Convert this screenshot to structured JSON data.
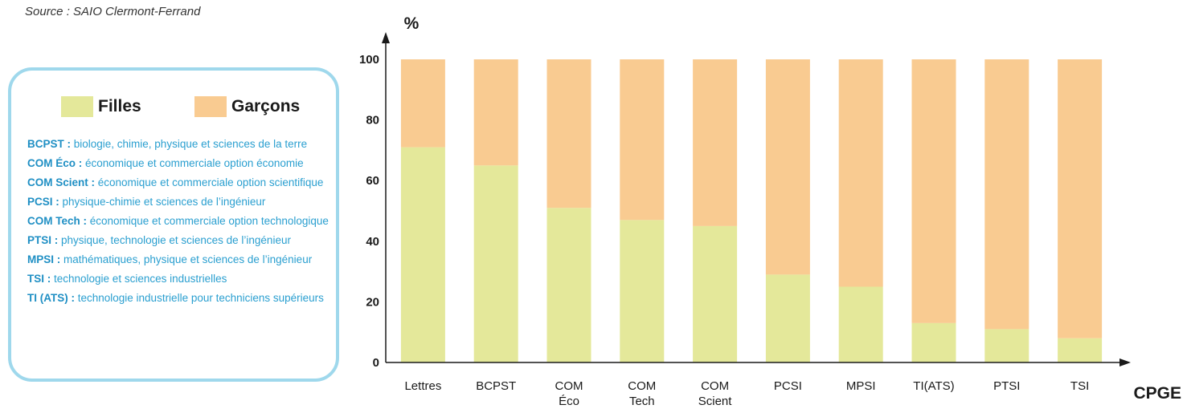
{
  "source": "Source : SAIO Clermont-Ferrand",
  "legend": {
    "filles": "Filles",
    "garcons": "Garçons"
  },
  "colors": {
    "filles": "#e4e89a",
    "garcons": "#f9cb91",
    "legend_border": "#9fd8ec",
    "defs_text": "#2a9fd0"
  },
  "definitions": [
    {
      "term": "BCPST :",
      "text": " biologie, chimie, physique et sciences de la terre"
    },
    {
      "term": "COM Éco :",
      "text": " économique et commerciale option économie"
    },
    {
      "term": "COM Scient :",
      "text": " économique et commerciale option scientifique"
    },
    {
      "term": "PCSI :",
      "text": " physique-chimie et sciences de l’ingénieur"
    },
    {
      "term": "COM Tech :",
      "text": " économique et commerciale option technologique"
    },
    {
      "term": "PTSI :",
      "text": " physique, technologie et sciences de l’ingénieur"
    },
    {
      "term": "MPSI :",
      "text": " mathématiques, physique et sciences de l’ingénieur"
    },
    {
      "term": "TSI :",
      "text": " technologie et sciences industrielles"
    },
    {
      "term": "TI (ATS) :",
      "text": " technologie industrielle pour techniciens supérieurs"
    }
  ],
  "chart_data": {
    "type": "bar",
    "stacked": true,
    "categories": [
      [
        "Lettres"
      ],
      [
        "BCPST"
      ],
      [
        "COM",
        "Éco"
      ],
      [
        "COM",
        "Tech"
      ],
      [
        "COM",
        "Scient"
      ],
      [
        "PCSI"
      ],
      [
        "MPSI"
      ],
      [
        "TI(ATS)"
      ],
      [
        "PTSI"
      ],
      [
        "TSI"
      ]
    ],
    "series": [
      {
        "name": "Filles",
        "values": [
          71,
          65,
          51,
          47,
          45,
          29,
          25,
          13,
          11,
          8
        ]
      },
      {
        "name": "Garçons",
        "values": [
          29,
          35,
          49,
          53,
          55,
          71,
          75,
          87,
          89,
          92
        ]
      }
    ],
    "ylabel": "%",
    "xlabel": "CPGE",
    "ylim": [
      0,
      100
    ],
    "yticks": [
      0,
      20,
      40,
      60,
      80,
      100
    ],
    "grid": false,
    "legend_position": "left"
  }
}
